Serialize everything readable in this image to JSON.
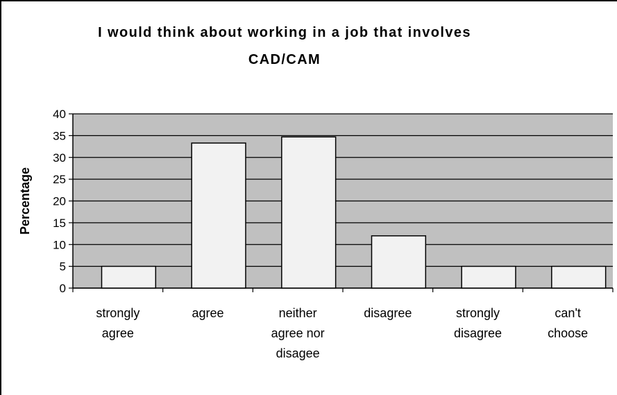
{
  "chart_data": {
    "type": "bar",
    "title_lines": [
      "I would think about working in a job that involves",
      "CAD/CAM"
    ],
    "ylabel": "Percentage",
    "xlabel": "",
    "ylim": [
      0,
      40
    ],
    "yticks": [
      0,
      5,
      10,
      15,
      20,
      25,
      30,
      35,
      40
    ],
    "categories": [
      [
        "strongly",
        "agree"
      ],
      [
        "agree"
      ],
      [
        "neither",
        "agree nor",
        "disagee"
      ],
      [
        "disagree"
      ],
      [
        "strongly",
        "disagree"
      ],
      [
        "can't",
        "choose"
      ]
    ],
    "values": [
      5,
      33.3,
      34.7,
      12,
      5,
      5
    ],
    "grid": true,
    "legend": "none",
    "colors": {
      "plot_background": "#c0c0c0",
      "bar_fill": "#f2f2f2",
      "bar_stroke": "#000000",
      "gridline": "#000000"
    }
  }
}
